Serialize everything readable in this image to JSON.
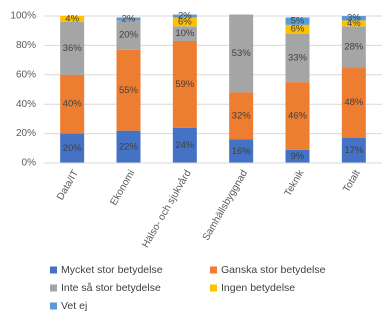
{
  "chart_data": {
    "type": "stacked_bar_percent",
    "categories": [
      "Data/IT",
      "Ekonomi",
      "Hälso- och sjukvård",
      "Samhällsbyggnad",
      "Teknik",
      "Totalt"
    ],
    "series": [
      {
        "name": "Mycket stor betydelse",
        "color": "#4472c4",
        "values": [
          20,
          22,
          24,
          16,
          9,
          17
        ],
        "value_labels": [
          "20%",
          "22%",
          "24%",
          "16%",
          "9%",
          "17%"
        ]
      },
      {
        "name": "Ganska stor betydelse",
        "color": "#ed7d31",
        "values": [
          40,
          55,
          59,
          32,
          46,
          48
        ],
        "value_labels": [
          "40%",
          "55%",
          "59%",
          "32%",
          "46%",
          "48%"
        ]
      },
      {
        "name": "Inte så stor betydelse",
        "color": "#a5a5a5",
        "values": [
          36,
          20,
          10,
          53,
          33,
          28
        ],
        "value_labels": [
          "36%",
          "20%",
          "10%",
          "53%",
          "33%",
          "28%"
        ]
      },
      {
        "name": "Ingen betydelse",
        "color": "#ffc000",
        "values": [
          4,
          null,
          6,
          null,
          6,
          4
        ],
        "value_labels": [
          "4%",
          null,
          "6%",
          null,
          "6%",
          "4%"
        ]
      },
      {
        "name": "Vet ej",
        "color": "#5b9bd5",
        "values": [
          null,
          2,
          2,
          null,
          5,
          3
        ],
        "value_labels": [
          null,
          "2%",
          "2%",
          null,
          "5%",
          "3%"
        ]
      }
    ],
    "ylim": [
      0,
      100
    ],
    "yticks": [
      {
        "value": 0,
        "label": "0%"
      },
      {
        "value": 20,
        "label": "20%"
      },
      {
        "value": 40,
        "label": "40%"
      },
      {
        "value": 60,
        "label": "60%"
      },
      {
        "value": 80,
        "label": "80%"
      },
      {
        "value": 100,
        "label": "100%"
      }
    ],
    "grid": true
  }
}
